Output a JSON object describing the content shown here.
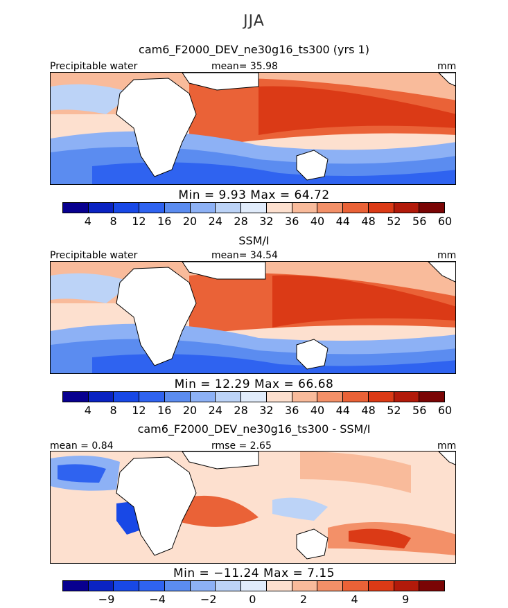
{
  "season": "JJA",
  "panels": [
    {
      "title": "cam6_F2000_DEV_ne30g16_ts300 (yrs 1)",
      "left_label": "Precipitable water",
      "mid_label": "mean=  35.98",
      "units": "mm",
      "minmax": "Min =    9.93  Max =   64.72",
      "ticks": [
        "4",
        "8",
        "12",
        "16",
        "20",
        "24",
        "28",
        "32",
        "36",
        "40",
        "44",
        "48",
        "52",
        "56",
        "60"
      ]
    },
    {
      "title": "SSM/I",
      "left_label": "Precipitable water",
      "mid_label": "mean=  34.54",
      "units": "mm",
      "minmax": "Min =   12.29  Max =   66.68",
      "ticks": [
        "4",
        "8",
        "12",
        "16",
        "20",
        "24",
        "28",
        "32",
        "36",
        "40",
        "44",
        "48",
        "52",
        "56",
        "60"
      ]
    },
    {
      "title": "cam6_F2000_DEV_ne30g16_ts300 - SSM/I",
      "left_label": "mean =    0.84",
      "mid_label": "rmse =    2.65",
      "units": "mm",
      "minmax": "Min = −11.24  Max =    7.15",
      "ticks": [
        "−9",
        "−4",
        "−2",
        "0",
        "2",
        "4",
        "9"
      ]
    }
  ],
  "colorbar_colors": [
    "#08008f",
    "#0a23c2",
    "#1848e6",
    "#2f63f0",
    "#5b8cf0",
    "#8db1f5",
    "#bcd3f7",
    "#e1ecfb",
    "#fde0cf",
    "#f9bb9b",
    "#f39068",
    "#ea6237",
    "#db3a16",
    "#b21a0a",
    "#7a0505"
  ]
}
